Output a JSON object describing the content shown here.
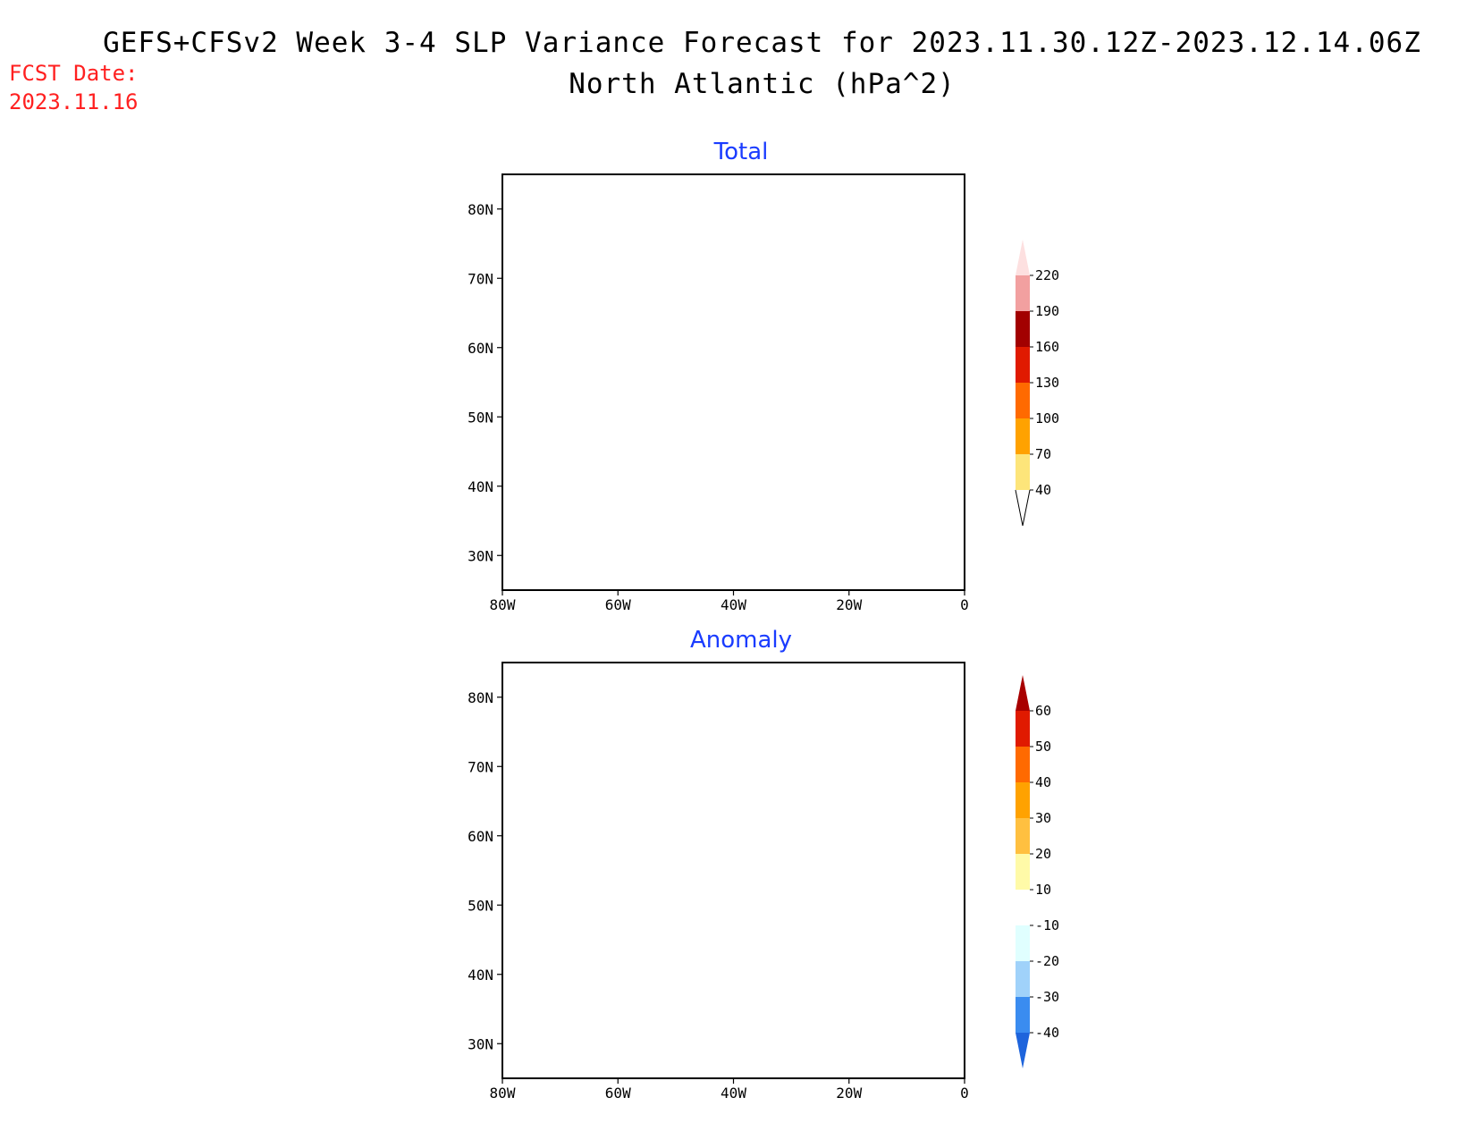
{
  "header": {
    "title_line1": "GEFS+CFSv2 Week 3-4 SLP Variance Forecast for 2023.11.30.12Z-2023.12.14.06Z",
    "title_line2": "North Atlantic (hPa^2)",
    "fcst_label": "FCST Date:",
    "fcst_value": "2023.11.16"
  },
  "map": {
    "lon_range": [
      -80,
      0
    ],
    "lat_range": [
      25,
      85
    ],
    "lon_ticks": [
      "80W",
      "60W",
      "40W",
      "20W",
      "0"
    ],
    "lat_ticks": [
      "80N",
      "70N",
      "60N",
      "50N",
      "40N",
      "30N"
    ]
  },
  "panels": [
    {
      "title": "Total",
      "colorbar": {
        "levels": [
          "40",
          "70",
          "100",
          "130",
          "160",
          "190",
          "220"
        ],
        "colors": [
          "#fde57a",
          "#ffa200",
          "#ff6a00",
          "#e01a00",
          "#a20000",
          "#f2a0a0",
          "#fde0e0"
        ]
      }
    },
    {
      "title": "Anomaly",
      "colorbar": {
        "levels": [
          "60",
          "50",
          "40",
          "30",
          "20",
          "10",
          "-10",
          "-20",
          "-30",
          "-40"
        ],
        "colors": [
          "#a80000",
          "#e01a00",
          "#ff6a00",
          "#ffa200",
          "#ffc040",
          "#fffaa8",
          "#ffffff",
          "#e0ffff",
          "#a0d2fa",
          "#3a8cf0",
          "#1e64dc"
        ]
      }
    }
  ]
}
